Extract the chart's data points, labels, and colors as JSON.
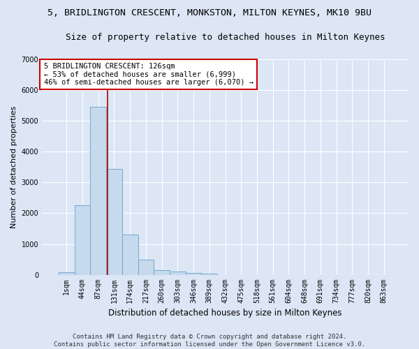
{
  "title": "5, BRIDLINGTON CRESCENT, MONKSTON, MILTON KEYNES, MK10 9BU",
  "subtitle": "Size of property relative to detached houses in Milton Keynes",
  "xlabel": "Distribution of detached houses by size in Milton Keynes",
  "ylabel": "Number of detached properties",
  "footer_line1": "Contains HM Land Registry data © Crown copyright and database right 2024.",
  "footer_line2": "Contains public sector information licensed under the Open Government Licence v3.0.",
  "bar_labels": [
    "1sqm",
    "44sqm",
    "87sqm",
    "131sqm",
    "174sqm",
    "217sqm",
    "260sqm",
    "303sqm",
    "346sqm",
    "389sqm",
    "432sqm",
    "475sqm",
    "518sqm",
    "561sqm",
    "604sqm",
    "648sqm",
    "691sqm",
    "734sqm",
    "777sqm",
    "820sqm",
    "863sqm"
  ],
  "bar_values": [
    80,
    2270,
    5470,
    3450,
    1310,
    480,
    160,
    100,
    60,
    35,
    0,
    0,
    0,
    0,
    0,
    0,
    0,
    0,
    0,
    0,
    0
  ],
  "bar_color": "#c6d9ed",
  "bar_edge_color": "#6aa0c7",
  "background_color": "#dce6f5",
  "grid_color": "#ffffff",
  "annotation_line1": "5 BRIDLINGTON CRESCENT: 126sqm",
  "annotation_line2": "← 53% of detached houses are smaller (6,999)",
  "annotation_line3": "46% of semi-detached houses are larger (6,070) →",
  "vline_x": 2.57,
  "vline_color": "#aa0000",
  "annotation_box_facecolor": "#ffffff",
  "annotation_box_edgecolor": "#cc0000",
  "ylim": [
    0,
    7000
  ],
  "yticks": [
    0,
    1000,
    2000,
    3000,
    4000,
    5000,
    6000,
    7000
  ],
  "title_fontsize": 9.5,
  "subtitle_fontsize": 9,
  "xlabel_fontsize": 8.5,
  "ylabel_fontsize": 8,
  "tick_fontsize": 7,
  "annotation_fontsize": 7.5,
  "footer_fontsize": 6.5
}
